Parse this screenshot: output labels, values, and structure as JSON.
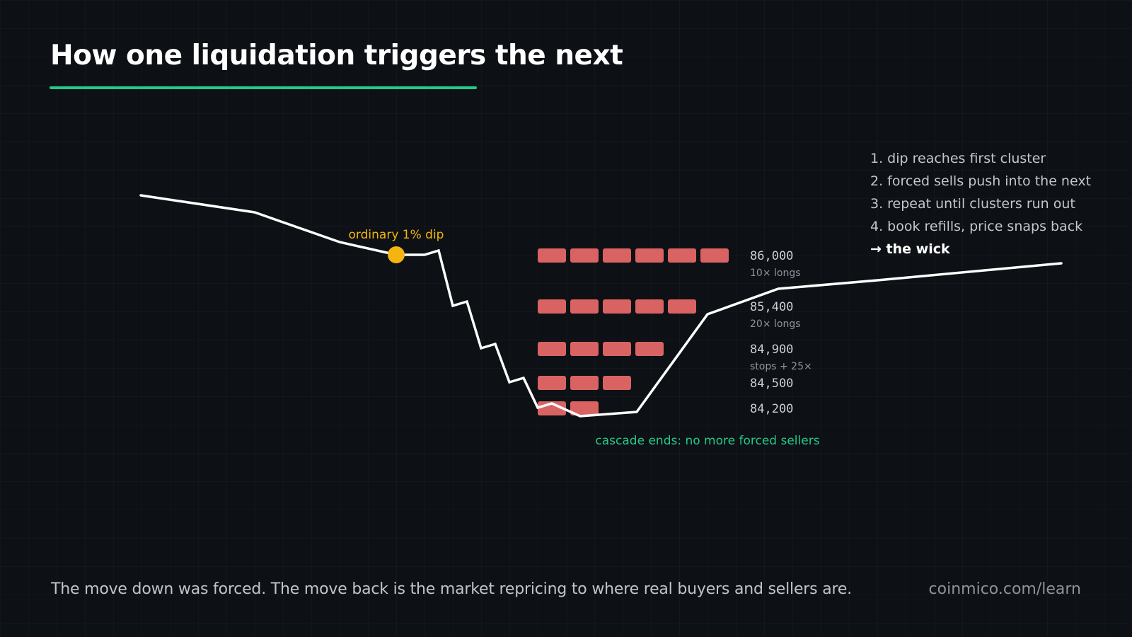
{
  "title": "How one liquidation triggers the next",
  "colors": {
    "background": "#0d1014",
    "accent": "#22c98b",
    "dip": "#f4b510",
    "cluster": "#d96363",
    "price_line": "#ffffff",
    "label": "#c9ced4",
    "sublabel": "#8f959c"
  },
  "annotations": {
    "dip": "ordinary 1% dip",
    "cascade_end": "cascade ends: no more forced sellers"
  },
  "clusters": [
    {
      "price": "86,000",
      "label": "10× longs",
      "blocks": 6
    },
    {
      "price": "85,400",
      "label": "20× longs",
      "blocks": 5
    },
    {
      "price": "84,900",
      "label": "stops + 25×",
      "blocks": 4
    },
    {
      "price": "84,500",
      "label": "",
      "blocks": 3
    },
    {
      "price": "84,200",
      "label": "",
      "blocks": 2
    }
  ],
  "steps": [
    "1. dip reaches first cluster",
    "2. forced sells push into the next",
    "3. repeat until clusters run out",
    "4. book refills, price snaps back"
  ],
  "conclusion": "→ the wick",
  "footer": {
    "note": "The move down was forced. The move back is the market repricing to where real buyers and sellers are.",
    "source": "coinmico.com/learn"
  }
}
